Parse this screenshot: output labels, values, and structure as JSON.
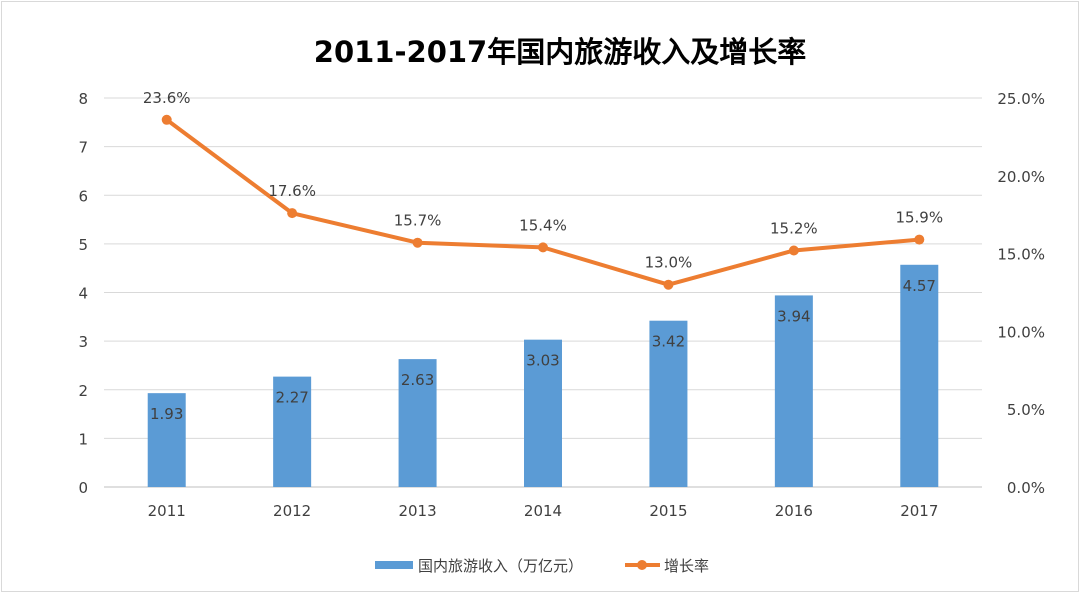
{
  "chart_data": {
    "type": "bar+line",
    "title": "2011-2017年国内旅游收入及增长率",
    "categories": [
      "2011",
      "2012",
      "2013",
      "2014",
      "2015",
      "2016",
      "2017"
    ],
    "series": [
      {
        "name": "国内旅游收入（万亿元）",
        "type": "bar",
        "axis": "left",
        "color": "#5B9BD5",
        "values": [
          1.93,
          2.27,
          2.63,
          3.03,
          3.42,
          3.94,
          4.57
        ],
        "labels": [
          "1.93",
          "2.27",
          "2.63",
          "3.03",
          "3.42",
          "3.94",
          "4.57"
        ]
      },
      {
        "name": "增长率",
        "type": "line",
        "axis": "right",
        "color": "#ED7D31",
        "values": [
          23.6,
          17.6,
          15.7,
          15.4,
          13.0,
          15.2,
          15.9
        ],
        "labels": [
          "23.6%",
          "17.6%",
          "15.7%",
          "15.4%",
          "13.0%",
          "15.2%",
          "15.9%"
        ]
      }
    ],
    "y_left": {
      "range": [
        0,
        8
      ],
      "ticks": [
        "0",
        "1",
        "2",
        "3",
        "4",
        "5",
        "6",
        "7",
        "8"
      ]
    },
    "y_right": {
      "range": [
        0,
        25
      ],
      "ticks": [
        "0.0%",
        "5.0%",
        "10.0%",
        "15.0%",
        "20.0%",
        "25.0%"
      ]
    },
    "grid": true,
    "legend": "bottom"
  }
}
